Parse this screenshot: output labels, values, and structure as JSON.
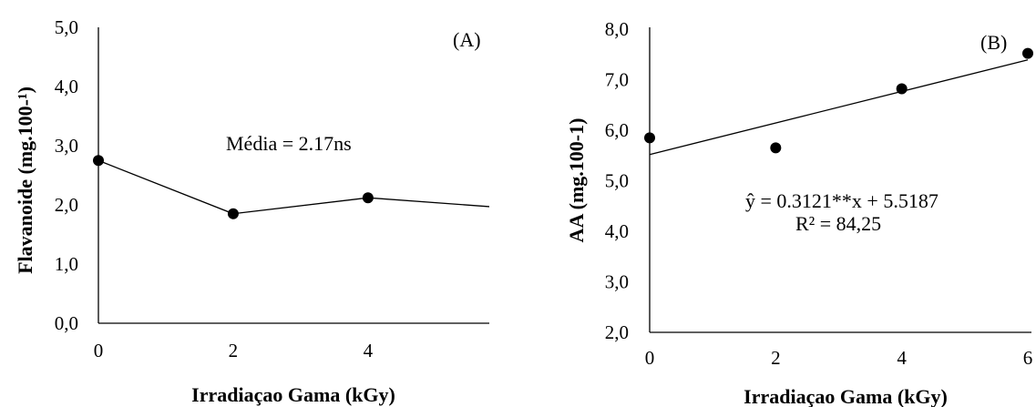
{
  "chart_data": [
    {
      "type": "line",
      "panel_label": "(A)",
      "title": "",
      "xlabel": "Irradiaçao Gama (kGy)",
      "ylabel": "Flavanoide (mg.100-¹)",
      "xlim": [
        0,
        5.8
      ],
      "ylim": [
        0,
        5
      ],
      "xticks": [
        0,
        2,
        4
      ],
      "xtick_labels": [
        "0",
        "2",
        "4"
      ],
      "yticks": [
        0,
        1,
        2,
        3,
        4,
        5
      ],
      "ytick_labels": [
        "0,0",
        "1,0",
        "2,0",
        "3,0",
        "4,0",
        "5,0"
      ],
      "grid": false,
      "series": [
        {
          "x": [
            0,
            2,
            4
          ],
          "y": [
            2.75,
            1.85,
            2.12
          ],
          "marker": "circle"
        }
      ],
      "line_extension": {
        "x": [
          4,
          5.8
        ],
        "y": [
          2.12,
          1.97
        ]
      },
      "annotation": "Média = 2.17ns"
    },
    {
      "type": "scatter",
      "panel_label": "(B)",
      "title": "",
      "xlabel": "Irradiaçao Gama (kGy)",
      "ylabel": "AA (mg.100-1)",
      "xlim": [
        0,
        6
      ],
      "ylim": [
        2,
        8
      ],
      "xticks": [
        0,
        2,
        4,
        6
      ],
      "xtick_labels": [
        "0",
        "2",
        "4",
        "6"
      ],
      "yticks": [
        2,
        3,
        4,
        5,
        6,
        7,
        8
      ],
      "ytick_labels": [
        "2,0",
        "3,0",
        "4,0",
        "5,0",
        "6,0",
        "7,0",
        "8,0"
      ],
      "grid": false,
      "series": [
        {
          "x": [
            0,
            2,
            4,
            6
          ],
          "y": [
            5.85,
            5.65,
            6.82,
            7.52
          ],
          "marker": "circle"
        }
      ],
      "trendline": {
        "slope": 0.3121,
        "intercept": 5.5187,
        "x": [
          0,
          6
        ]
      },
      "equation": "ŷ = 0.3121**x  + 5.5187",
      "r2": "R² = 84,25"
    }
  ]
}
